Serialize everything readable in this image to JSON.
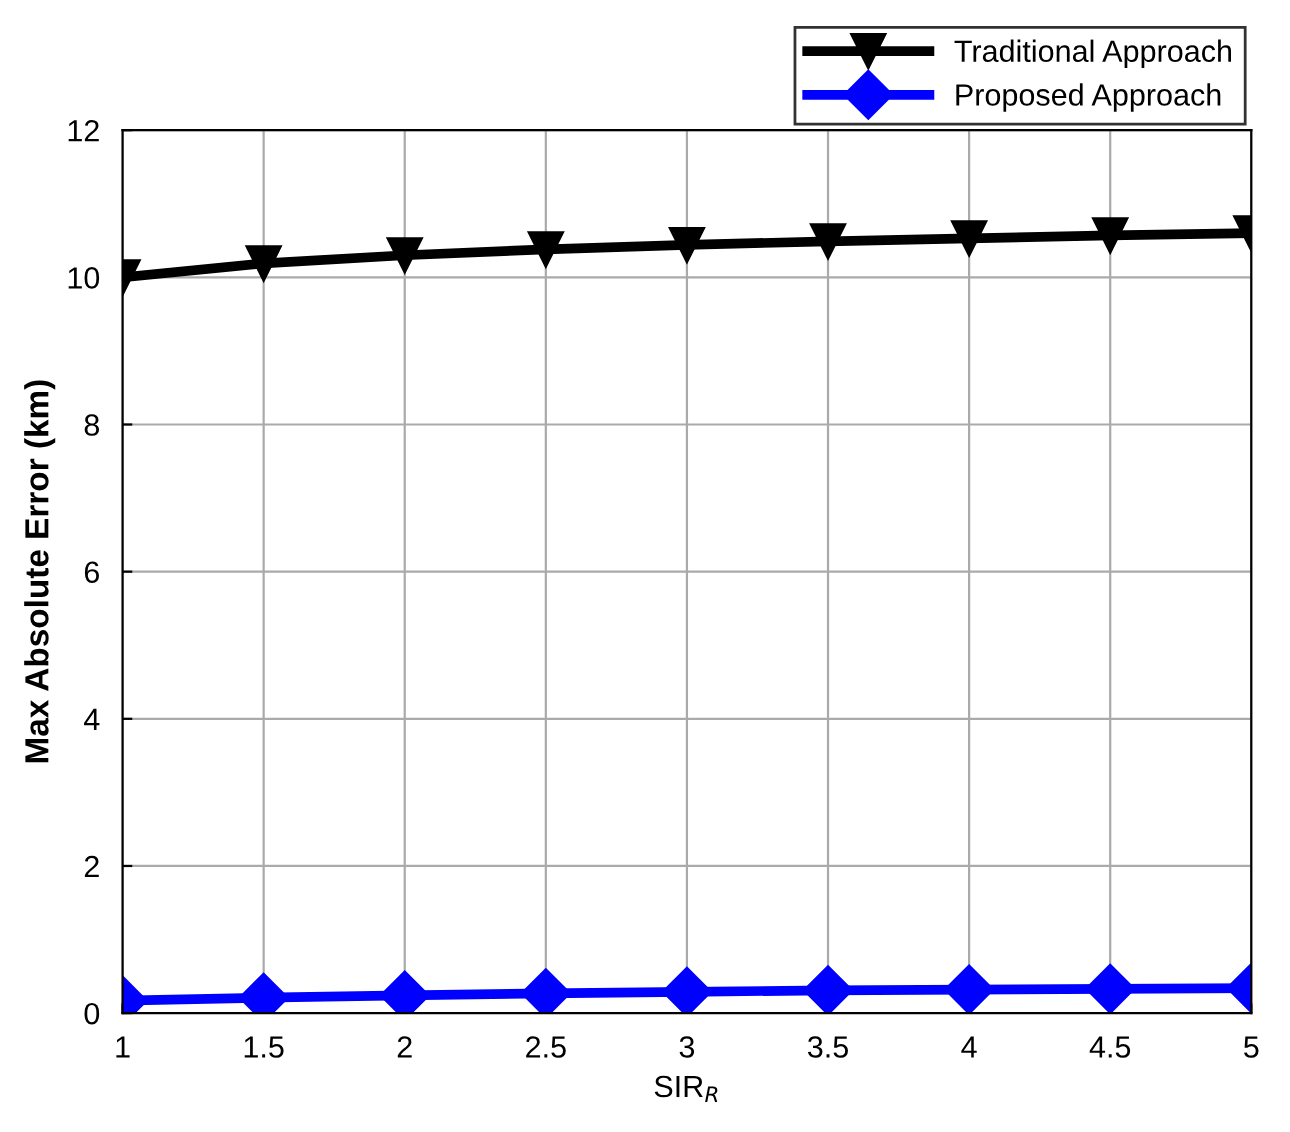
{
  "chart_data": {
    "type": "line",
    "xlabel": "SIR$_{R}$",
    "ylabel": "Max Absolute Error (km)",
    "x": [
      1,
      1.5,
      2,
      2.5,
      3,
      3.5,
      4,
      4.5,
      5
    ],
    "series": [
      {
        "name": "Traditional Approach",
        "color": "#000000",
        "marker": "triangle",
        "values": [
          10.0,
          10.19,
          10.3,
          10.38,
          10.44,
          10.49,
          10.53,
          10.57,
          10.6
        ]
      },
      {
        "name": "Proposed Approach",
        "color": "#0000ff",
        "marker": "diamond",
        "values": [
          0.17,
          0.21,
          0.24,
          0.27,
          0.29,
          0.31,
          0.32,
          0.33,
          0.34
        ]
      }
    ],
    "xlim": [
      1,
      5
    ],
    "xticks": [
      1,
      1.5,
      2,
      2.5,
      3,
      3.5,
      4,
      4.5,
      5
    ],
    "ylim": [
      0,
      12
    ],
    "yticks": [
      0,
      2,
      4,
      6,
      8,
      10,
      12
    ],
    "grid": true,
    "legend": "top right",
    "line_style": "solid"
  }
}
